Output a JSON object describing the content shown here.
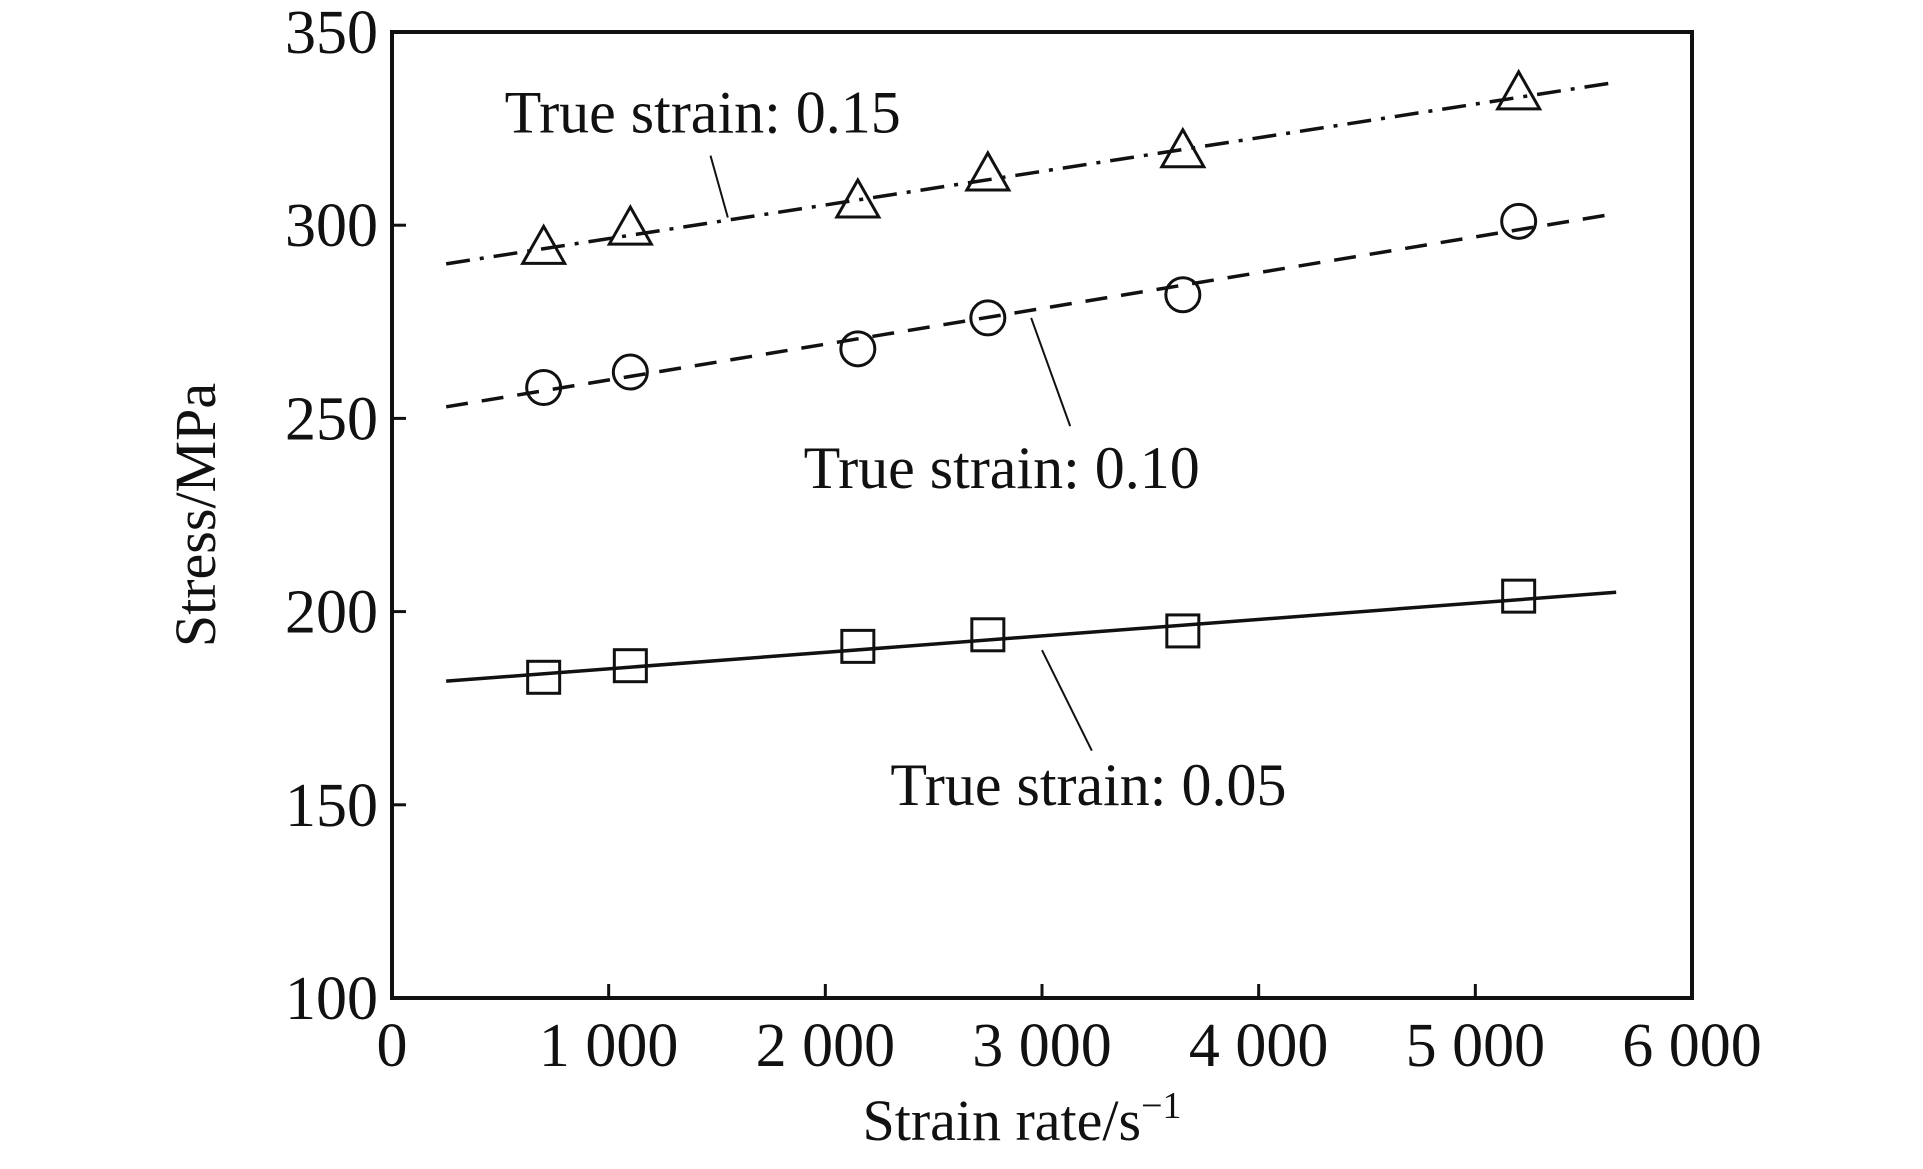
{
  "chart_data": {
    "type": "scatter",
    "xlabel": "Strain rate/s",
    "xlabel_superscript": "−1",
    "ylabel": "Stress/MPa",
    "xlim": [
      0,
      6000
    ],
    "ylim": [
      100,
      350
    ],
    "x_ticks": [
      0,
      1000,
      2000,
      3000,
      4000,
      5000,
      6000
    ],
    "x_tick_labels": [
      "0",
      "1 000",
      "2 000",
      "3 000",
      "4 000",
      "5 000",
      "6 000"
    ],
    "y_ticks": [
      100,
      150,
      200,
      250,
      300,
      350
    ],
    "y_tick_labels": [
      "100",
      "150",
      "200",
      "250",
      "300",
      "350"
    ],
    "grid": false,
    "series": [
      {
        "marker": "square",
        "line_style": "solid",
        "points": [
          {
            "x": 700,
            "y": 183
          },
          {
            "x": 1100,
            "y": 186
          },
          {
            "x": 2150,
            "y": 191
          },
          {
            "x": 2750,
            "y": 194
          },
          {
            "x": 3650,
            "y": 195
          },
          {
            "x": 5200,
            "y": 204
          }
        ],
        "fit_line": [
          {
            "x": 250,
            "y": 182
          },
          {
            "x": 5650,
            "y": 205
          }
        ],
        "annotation": {
          "text": "True strain: 0.05",
          "pointer_from": {
            "x": 3000,
            "y": 190
          },
          "pointer_to": {
            "x": 3230,
            "y": 164
          },
          "text_anchor": {
            "x": 2300,
            "y": 150
          }
        }
      },
      {
        "marker": "circle",
        "line_style": "dashed",
        "points": [
          {
            "x": 700,
            "y": 258
          },
          {
            "x": 1100,
            "y": 262
          },
          {
            "x": 2150,
            "y": 268
          },
          {
            "x": 2750,
            "y": 276
          },
          {
            "x": 3650,
            "y": 282
          },
          {
            "x": 5200,
            "y": 301
          }
        ],
        "fit_line": [
          {
            "x": 250,
            "y": 253
          },
          {
            "x": 5650,
            "y": 303
          }
        ],
        "annotation": {
          "text": "True strain: 0.10",
          "pointer_from": {
            "x": 2950,
            "y": 276
          },
          "pointer_to": {
            "x": 3130,
            "y": 248
          },
          "text_anchor": {
            "x": 1900,
            "y": 232
          }
        }
      },
      {
        "marker": "triangle",
        "line_style": "dash-dot",
        "points": [
          {
            "x": 700,
            "y": 294
          },
          {
            "x": 1100,
            "y": 299
          },
          {
            "x": 2150,
            "y": 306
          },
          {
            "x": 2750,
            "y": 313
          },
          {
            "x": 3650,
            "y": 319
          },
          {
            "x": 5200,
            "y": 334
          }
        ],
        "fit_line": [
          {
            "x": 250,
            "y": 290
          },
          {
            "x": 5650,
            "y": 337
          }
        ],
        "annotation": {
          "text": "True strain: 0.15",
          "pointer_from": {
            "x": 1550,
            "y": 302
          },
          "pointer_to": {
            "x": 1470,
            "y": 318
          },
          "text_anchor": {
            "x": 520,
            "y": 324
          }
        }
      }
    ]
  }
}
